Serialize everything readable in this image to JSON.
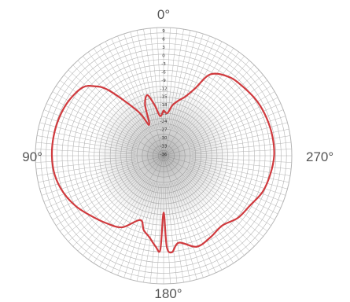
{
  "colors": {
    "background": "#ffffff",
    "grid": "#b4b4b4",
    "center_shade": "#6e6e6e",
    "trace": "#d03a3e",
    "label": "#555555"
  },
  "chart_data": {
    "type": "polar-line",
    "title": "",
    "angle_labels": {
      "top": "0°",
      "left": "90°",
      "right": "270°",
      "bottom": "180°"
    },
    "angle_direction": "counter-clockwise from top",
    "radial_range": [
      -36,
      9
    ],
    "radial_tick_labels": [
      "9",
      "6",
      "3",
      "0",
      "-3",
      "-6",
      "-9",
      "-12",
      "-15",
      "-18",
      "-21",
      "-24",
      "-27",
      "-30",
      "-33",
      "-36"
    ],
    "grid": true,
    "series": [
      {
        "angle_deg": [
          0,
          5,
          10,
          15,
          20,
          25,
          30,
          40,
          45,
          50,
          60,
          70,
          80,
          90,
          100,
          110,
          120,
          130,
          140,
          150,
          160,
          165,
          170,
          175,
          178,
          180,
          182,
          185,
          190,
          200,
          210,
          220,
          230,
          240,
          250,
          260,
          270,
          280,
          290,
          300,
          310,
          320,
          330,
          335,
          340,
          345,
          350,
          355,
          360
        ],
        "value_db": [
          -20,
          -22,
          -18,
          -14,
          -17,
          -24,
          -18,
          -6,
          -1.5,
          1.2,
          2.5,
          3,
          3.2,
          3.2,
          2.8,
          1.5,
          -0.5,
          -3,
          -5,
          -7,
          -12,
          -9,
          -7,
          -4,
          -3,
          -16,
          -4,
          -2,
          -5,
          -2,
          -3,
          -4,
          -2,
          -1,
          1,
          2,
          2.8,
          2.8,
          2.5,
          2,
          1,
          0,
          -3,
          -10,
          -14,
          -16,
          -18,
          -21,
          -20
        ]
      }
    ]
  }
}
